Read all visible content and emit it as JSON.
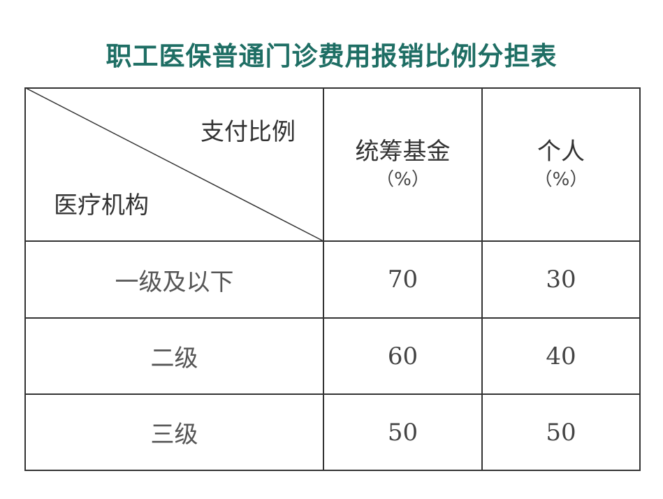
{
  "title": "职工医保普通门诊费用报销比例分担表",
  "colors": {
    "title": "#1e6e64",
    "border": "#333333"
  },
  "table": {
    "corner": {
      "top_right": "支付比例",
      "bottom_left": "医疗机构"
    },
    "headers": [
      {
        "label": "统筹基金",
        "unit": "（%）"
      },
      {
        "label": "个人",
        "unit": "（%）"
      }
    ],
    "rows": [
      {
        "institution": "一级及以下",
        "fund": "70",
        "personal": "30"
      },
      {
        "institution": "二级",
        "fund": "60",
        "personal": "40"
      },
      {
        "institution": "三级",
        "fund": "50",
        "personal": "50"
      }
    ]
  }
}
